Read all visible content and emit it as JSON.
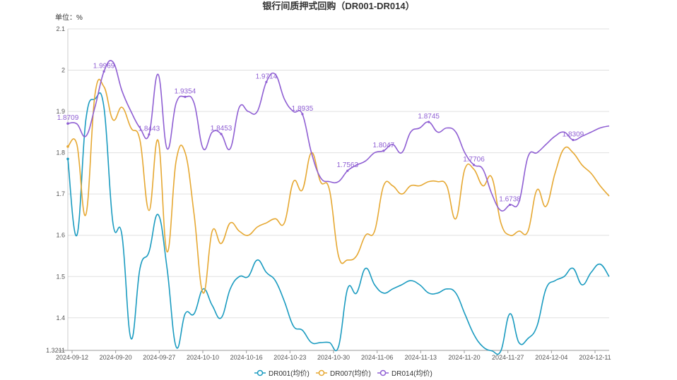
{
  "chart_data": {
    "type": "line",
    "title": "银行间质押式回购（DR001-DR014）",
    "unit_label": "单位：%",
    "ylim": [
      1.3211,
      2.1
    ],
    "yticks": [
      "2.1",
      "2",
      "1.9",
      "1.8",
      "1.7",
      "1.6",
      "1.5",
      "1.4",
      "1.3211"
    ],
    "ytick_values": [
      2.1,
      2.0,
      1.9,
      1.8,
      1.7,
      1.6,
      1.5,
      1.4,
      1.3211
    ],
    "xticks": [
      "2024-09-12",
      "2024-09-20",
      "2024-09-27",
      "2024-10-10",
      "2024-10-16",
      "2024-10-23",
      "2024-10-30",
      "2024-11-06",
      "2024-11-13",
      "2024-11-20",
      "2024-11-27",
      "2024-12-04",
      "2024-12-11"
    ],
    "x": [
      "09-12",
      "09-13",
      "09-18",
      "09-19",
      "09-20",
      "09-23",
      "09-24",
      "09-25",
      "09-26",
      "09-27",
      "09-29",
      "09-30",
      "10-08",
      "10-09",
      "10-10",
      "10-11",
      "10-12",
      "10-14",
      "10-15",
      "10-16",
      "10-17",
      "10-18",
      "10-21",
      "10-22",
      "10-23",
      "10-24",
      "10-25",
      "10-28",
      "10-29",
      "10-30",
      "10-31",
      "11-01",
      "11-04",
      "11-05",
      "11-06",
      "11-07",
      "11-08",
      "11-11",
      "11-12",
      "11-13",
      "11-14",
      "11-15",
      "11-18",
      "11-19",
      "11-20",
      "11-21",
      "11-22",
      "11-25",
      "11-26",
      "11-27",
      "11-28",
      "11-29",
      "12-02",
      "12-03",
      "12-04",
      "12-05",
      "12-06",
      "12-09",
      "12-10",
      "12-11",
      "12-12"
    ],
    "grid": true,
    "legend_position": "bottom",
    "series": [
      {
        "name": "DR001(均价)",
        "color": "#1a9bc0",
        "values": [
          1.785,
          1.6,
          1.88,
          1.93,
          1.91,
          1.63,
          1.6,
          1.35,
          1.52,
          1.56,
          1.65,
          1.52,
          1.33,
          1.41,
          1.41,
          1.47,
          1.43,
          1.4,
          1.47,
          1.5,
          1.5,
          1.54,
          1.51,
          1.49,
          1.44,
          1.38,
          1.37,
          1.34,
          1.34,
          1.34,
          1.33,
          1.47,
          1.46,
          1.52,
          1.48,
          1.46,
          1.47,
          1.48,
          1.49,
          1.48,
          1.46,
          1.46,
          1.47,
          1.46,
          1.41,
          1.36,
          1.33,
          1.32,
          1.32,
          1.41,
          1.34,
          1.35,
          1.38,
          1.47,
          1.49,
          1.5,
          1.52,
          1.48,
          1.51,
          1.53,
          1.5
        ]
      },
      {
        "name": "DR007(均价)",
        "color": "#e6a832",
        "values": [
          1.815,
          1.82,
          1.65,
          1.94,
          1.96,
          1.88,
          1.91,
          1.86,
          1.83,
          1.66,
          1.83,
          1.56,
          1.78,
          1.8,
          1.65,
          1.46,
          1.61,
          1.58,
          1.63,
          1.61,
          1.6,
          1.62,
          1.63,
          1.64,
          1.63,
          1.73,
          1.71,
          1.8,
          1.73,
          1.71,
          1.55,
          1.54,
          1.55,
          1.6,
          1.61,
          1.72,
          1.72,
          1.7,
          1.72,
          1.72,
          1.73,
          1.73,
          1.72,
          1.64,
          1.76,
          1.76,
          1.72,
          1.74,
          1.63,
          1.6,
          1.61,
          1.61,
          1.71,
          1.67,
          1.75,
          1.81,
          1.8,
          1.77,
          1.75,
          1.72,
          1.695
        ]
      },
      {
        "name": "DR014(均价)",
        "color": "#8f5fd3",
        "values": [
          1.8709,
          1.87,
          1.84,
          1.91,
          1.9969,
          2.02,
          1.95,
          1.9,
          1.86,
          1.8443,
          1.99,
          1.81,
          1.92,
          1.9354,
          1.92,
          1.81,
          1.85,
          1.8453,
          1.81,
          1.91,
          1.9,
          1.9,
          1.9714,
          1.99,
          1.93,
          1.9,
          1.8935,
          1.8,
          1.74,
          1.73,
          1.73,
          1.7563,
          1.77,
          1.78,
          1.8,
          1.8047,
          1.82,
          1.8,
          1.85,
          1.86,
          1.8745,
          1.85,
          1.86,
          1.85,
          1.8,
          1.7706,
          1.76,
          1.7,
          1.66,
          1.6738,
          1.68,
          1.79,
          1.8,
          1.82,
          1.84,
          1.85,
          1.8309,
          1.84,
          1.85,
          1.86,
          1.865
        ]
      }
    ],
    "annotations": [
      {
        "series": 2,
        "index": 0,
        "text": "1.8709"
      },
      {
        "series": 2,
        "index": 4,
        "text": "1.9969"
      },
      {
        "series": 2,
        "index": 9,
        "text": "1.8443"
      },
      {
        "series": 2,
        "index": 13,
        "text": "1.9354"
      },
      {
        "series": 2,
        "index": 17,
        "text": "1.8453"
      },
      {
        "series": 2,
        "index": 22,
        "text": "1.9714"
      },
      {
        "series": 2,
        "index": 26,
        "text": "1.8935"
      },
      {
        "series": 2,
        "index": 31,
        "text": "1.7563"
      },
      {
        "series": 2,
        "index": 35,
        "text": "1.8047"
      },
      {
        "series": 2,
        "index": 40,
        "text": "1.8745"
      },
      {
        "series": 2,
        "index": 45,
        "text": "1.7706"
      },
      {
        "series": 2,
        "index": 49,
        "text": "1.6738"
      },
      {
        "series": 2,
        "index": 56,
        "text": "1.8309"
      }
    ]
  }
}
